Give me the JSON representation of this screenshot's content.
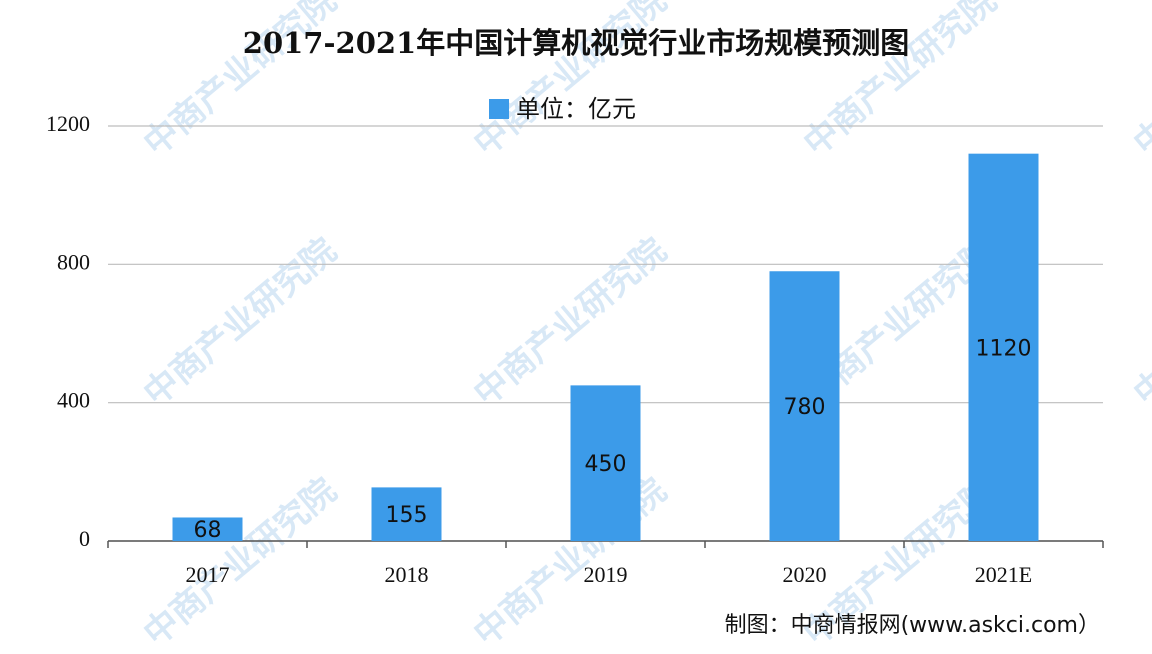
{
  "chart_data": {
    "type": "bar",
    "title": "2017-2021年中国计算机视觉行业市场规模预测图",
    "categories": [
      "2017",
      "2018",
      "2019",
      "2020",
      "2021E"
    ],
    "series": [
      {
        "name": "单位：亿元",
        "color": "#3c9be9",
        "values": [
          68,
          155,
          450,
          780,
          1120
        ]
      }
    ],
    "ylim": [
      0,
      1200
    ],
    "yticks": [
      0,
      400,
      800,
      1200
    ],
    "grid": true,
    "source": "制图：中商情报网(www.askci.com）",
    "watermark": "中商产业研究院"
  }
}
